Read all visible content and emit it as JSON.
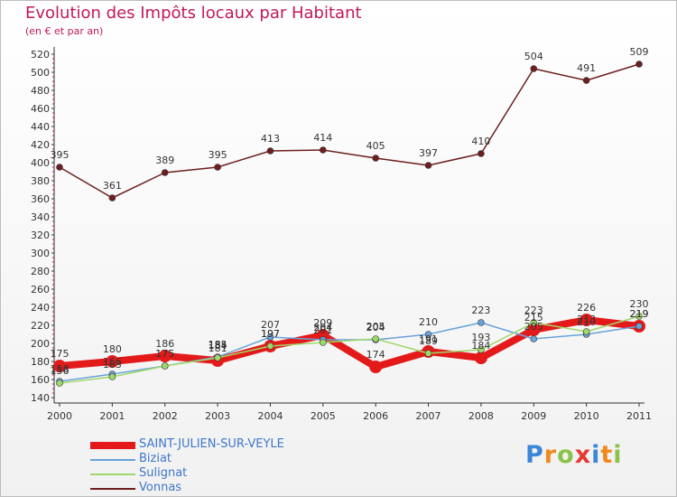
{
  "title": "Evolution des Impôts locaux par Habitant",
  "subtitle": "(en € et par an)",
  "logo": {
    "letters": [
      "P",
      "r",
      "o",
      "x",
      "i",
      "t",
      "i"
    ],
    "colors": [
      "#3b86d6",
      "#f08a1d",
      "#8bc34a",
      "#e53935",
      "#3b86d6",
      "#f08a1d",
      "#8bc34a"
    ]
  },
  "chart_data": {
    "type": "line",
    "x": [
      2000,
      2001,
      2002,
      2003,
      2004,
      2005,
      2006,
      2007,
      2008,
      2009,
      2010,
      2011
    ],
    "ylim": [
      140,
      520
    ],
    "yticks": [
      140,
      160,
      180,
      200,
      220,
      240,
      260,
      280,
      300,
      320,
      340,
      360,
      380,
      400,
      420,
      440,
      460,
      480,
      500,
      520
    ],
    "grid": false,
    "legend_position": "bottom-left",
    "series": [
      {
        "name": "SAINT-JULIEN-SUR-VEYLE",
        "color": "#e41a1a",
        "values": [
          175,
          180,
          186,
          181,
          197,
          209,
          174,
          191,
          184,
          215,
          226,
          219
        ],
        "labels": true
      },
      {
        "name": "Biziat",
        "color": "#6aa3d8",
        "values": [
          158,
          166,
          175,
          185,
          207,
          204,
          204,
          210,
          223,
          205,
          210,
          219
        ],
        "labels": true
      },
      {
        "name": "Sulignat",
        "color": "#9fd86a",
        "values": [
          156,
          163,
          175,
          184,
          197,
          201,
          205,
          189,
          193,
          223,
          213,
          230
        ],
        "labels": true
      },
      {
        "name": "Vonnas",
        "color": "#6d1f1f",
        "values": [
          395,
          361,
          389,
          395,
          413,
          414,
          405,
          397,
          410,
          504,
          491,
          509
        ],
        "labels": true
      }
    ]
  }
}
